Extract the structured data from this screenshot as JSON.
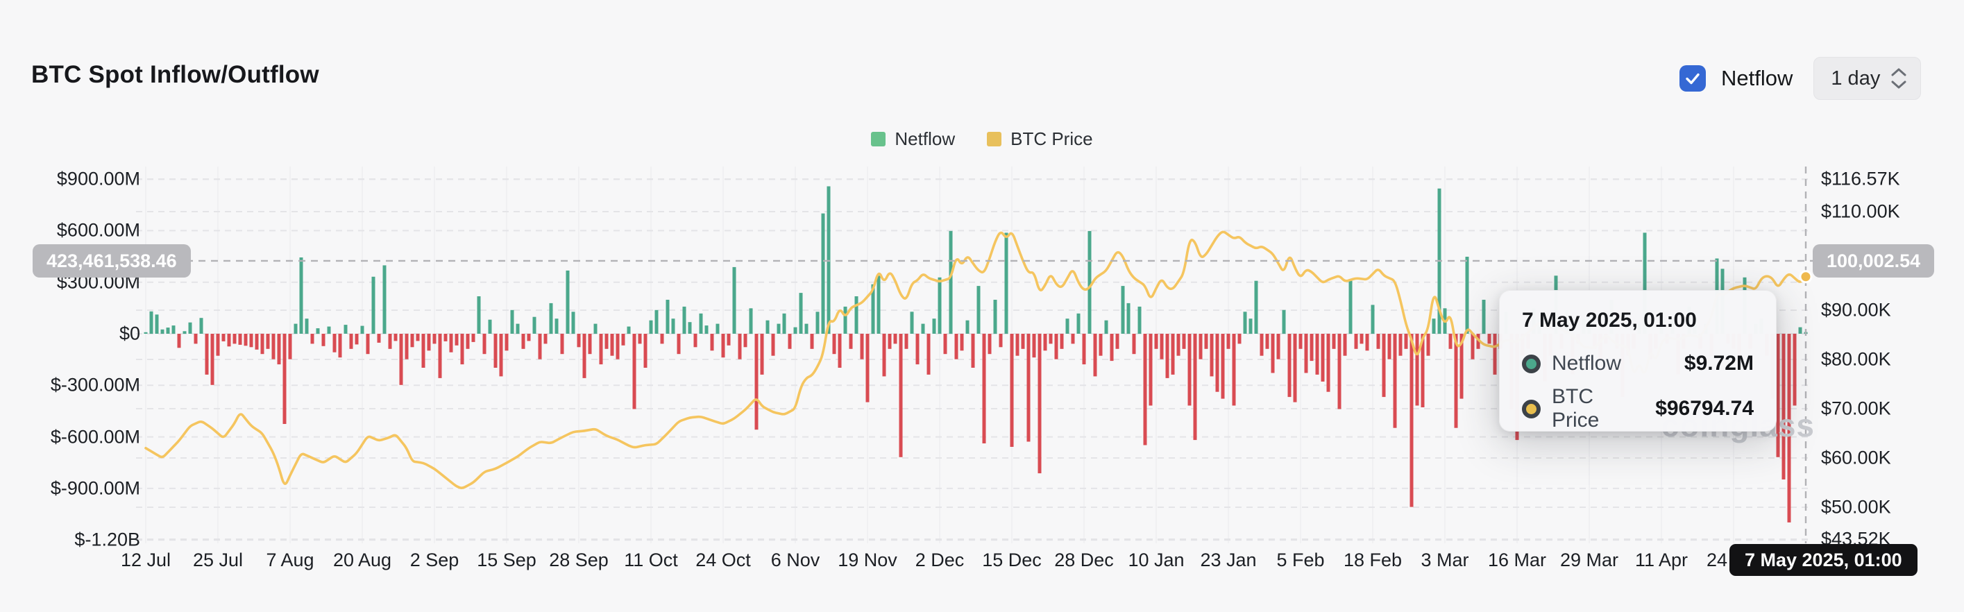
{
  "header": {
    "title": "BTC Spot Inflow/Outflow",
    "netflow_toggle_label": "Netflow",
    "netflow_toggle_checked": true,
    "interval_value": "1 day"
  },
  "legend": [
    {
      "label": "Netflow",
      "color": "#68c28c"
    },
    {
      "label": "BTC Price",
      "color": "#e8c05c"
    }
  ],
  "colors": {
    "bar_positive": "#4ba88c",
    "bar_negative": "#d94b52",
    "price_line": "#f5c55f",
    "checkbox_blue": "#3568d4",
    "grid": "#e4e4e7",
    "vgrid": "#ededf0",
    "crosshair": "#b2b2b6",
    "badge_gray": "#b9b9bd",
    "badge_black": "#121214"
  },
  "crosshair": {
    "left_badge_value": "423,461,538.46",
    "right_badge_value": "100,002.54",
    "date_badge": "7 May 2025, 01:00"
  },
  "tooltip": {
    "title": "7 May 2025, 01:00",
    "rows": [
      {
        "label": "Netflow",
        "value": "$9.72M",
        "color": "#4ba88c"
      },
      {
        "label": "BTC Price",
        "value": "$96794.74",
        "color": "#e9bf4e"
      }
    ]
  },
  "watermark": "coinglass",
  "chart_data": {
    "type": [
      "bar",
      "line"
    ],
    "title": "BTC Spot Inflow/Outflow",
    "x_range_days": 300,
    "x_axis": {
      "ticks": [
        {
          "label": "12 Jul",
          "day": 0
        },
        {
          "label": "25 Jul",
          "day": 13
        },
        {
          "label": "7 Aug",
          "day": 26
        },
        {
          "label": "20 Aug",
          "day": 39
        },
        {
          "label": "2 Sep",
          "day": 52
        },
        {
          "label": "15 Sep",
          "day": 65
        },
        {
          "label": "28 Sep",
          "day": 78
        },
        {
          "label": "11 Oct",
          "day": 91
        },
        {
          "label": "24 Oct",
          "day": 104
        },
        {
          "label": "6 Nov",
          "day": 117
        },
        {
          "label": "19 Nov",
          "day": 130
        },
        {
          "label": "2 Dec",
          "day": 143
        },
        {
          "label": "15 Dec",
          "day": 156
        },
        {
          "label": "28 Dec",
          "day": 169
        },
        {
          "label": "10 Jan",
          "day": 182
        },
        {
          "label": "23 Jan",
          "day": 195
        },
        {
          "label": "5 Feb",
          "day": 208
        },
        {
          "label": "18 Feb",
          "day": 221
        },
        {
          "label": "3 Mar",
          "day": 234
        },
        {
          "label": "16 Mar",
          "day": 247
        },
        {
          "label": "29 Mar",
          "day": 260
        },
        {
          "label": "11 Apr",
          "day": 273
        },
        {
          "label": "24 Apr",
          "day": 286
        }
      ],
      "hover_day": 299
    },
    "left_axis": {
      "name": "Netflow (USD)",
      "ticks": [
        {
          "label": "$900.00M",
          "value": 900
        },
        {
          "label": "$600.00M",
          "value": 600
        },
        {
          "label": "$300.00M",
          "value": 300
        },
        {
          "label": "$0",
          "value": 0
        },
        {
          "label": "$-300.00M",
          "value": -300
        },
        {
          "label": "$-600.00M",
          "value": -600
        },
        {
          "label": "$-900.00M",
          "value": -900
        },
        {
          "label": "$-1.20B",
          "value": -1200
        }
      ],
      "crosshair_value_musd": 423.46
    },
    "right_axis": {
      "name": "BTC Price (USD)",
      "ticks": [
        {
          "label": "$116.57K",
          "value": 116.57
        },
        {
          "label": "$110.00K",
          "value": 110
        },
        {
          "label": "$90.00K",
          "value": 90
        },
        {
          "label": "$80.00K",
          "value": 80
        },
        {
          "label": "$70.00K",
          "value": 70
        },
        {
          "label": "$60.00K",
          "value": 60
        },
        {
          "label": "$50.00K",
          "value": 50
        },
        {
          "label": "$43.52K",
          "value": 43.52
        }
      ],
      "crosshair_value_usd": 100002.54
    },
    "hover_point": {
      "netflow_musd": 9.72,
      "price_usd": 96794.74
    },
    "bar_series": {
      "name": "Netflow",
      "unit": "USD millions",
      "values": [
        8,
        130,
        112,
        25,
        36,
        48,
        -82,
        15,
        66,
        -58,
        92,
        -238,
        -298,
        -128,
        -44,
        -74,
        -58,
        -64,
        -70,
        -78,
        -92,
        -118,
        -88,
        -148,
        -178,
        -525,
        -148,
        58,
        444,
        88,
        -58,
        32,
        -72,
        42,
        -108,
        -138,
        52,
        -88,
        -62,
        46,
        -118,
        332,
        -52,
        398,
        -88,
        -42,
        -298,
        -148,
        -78,
        -42,
        -198,
        -98,
        -58,
        -258,
        -44,
        -108,
        -68,
        -178,
        -88,
        -48,
        218,
        -118,
        82,
        -198,
        -248,
        -98,
        138,
        58,
        -88,
        -42,
        98,
        -148,
        -58,
        178,
        88,
        -118,
        368,
        128,
        -78,
        -258,
        -118,
        58,
        -178,
        -88,
        -128,
        -148,
        -68,
        42,
        -438,
        -58,
        -198,
        78,
        138,
        -58,
        198,
        88,
        -118,
        158,
        68,
        -78,
        118,
        48,
        -98,
        58,
        -138,
        -68,
        388,
        -148,
        -78,
        148,
        -558,
        -238,
        78,
        -128,
        58,
        118,
        -88,
        38,
        238,
        58,
        -88,
        128,
        700,
        858,
        -118,
        -198,
        158,
        -88,
        218,
        -148,
        -398,
        288,
        338,
        -248,
        -88,
        -58,
        -718,
        -88,
        128,
        -178,
        58,
        -238,
        88,
        328,
        -118,
        598,
        -148,
        -98,
        78,
        -198,
        278,
        -638,
        -118,
        198,
        -78,
        588,
        -658,
        -128,
        -88,
        -628,
        -138,
        -812,
        -98,
        -58,
        -148,
        -88,
        88,
        -58,
        118,
        -178,
        598,
        -248,
        -128,
        78,
        -158,
        -88,
        278,
        178,
        -118,
        158,
        -648,
        -418,
        -88,
        -148,
        -258,
        -238,
        -128,
        -88,
        -418,
        -618,
        -148,
        -88,
        -248,
        -338,
        -378,
        -88,
        -418,
        -58,
        128,
        88,
        308,
        -128,
        -88,
        -228,
        -148,
        138,
        -368,
        -398,
        -88,
        -228,
        -158,
        -238,
        -278,
        -338,
        -88,
        -438,
        -128,
        308,
        -88,
        -58,
        -98,
        168,
        -88,
        -368,
        -148,
        -548,
        -128,
        -88,
        -1008,
        -418,
        -428,
        -128,
        88,
        845,
        148,
        -88,
        -548,
        -378,
        448,
        -148,
        -88,
        198,
        -58,
        -238,
        -88,
        128,
        -438,
        -618,
        -128,
        -88,
        148,
        88,
        -278,
        -128,
        338,
        -88,
        138,
        -238,
        -58,
        88,
        118,
        -88,
        -148,
        -58,
        198,
        -88,
        -368,
        -128,
        -88,
        58,
        588,
        -148,
        -88,
        128,
        -58,
        88,
        -238,
        -88,
        158,
        118,
        -88,
        58,
        -128,
        438,
        378,
        -58,
        -88,
        -148,
        328,
        -88,
        58,
        88,
        -128,
        -378,
        -718,
        -848,
        -1098,
        -418,
        38,
        9.72
      ]
    },
    "line_series": {
      "name": "BTC Price",
      "unit": "USD thousands",
      "keypoints": [
        [
          0,
          62
        ],
        [
          3,
          60
        ],
        [
          6,
          63.5
        ],
        [
          8,
          66.5
        ],
        [
          10,
          67.5
        ],
        [
          12,
          66
        ],
        [
          14,
          64
        ],
        [
          16,
          67
        ],
        [
          17,
          69.3
        ],
        [
          19,
          66.5
        ],
        [
          21,
          65
        ],
        [
          23,
          61
        ],
        [
          24,
          58
        ],
        [
          25,
          54
        ],
        [
          26,
          56.5
        ],
        [
          28,
          61
        ],
        [
          30,
          60
        ],
        [
          32,
          59
        ],
        [
          34,
          60.5
        ],
        [
          36,
          59
        ],
        [
          38,
          61
        ],
        [
          40,
          64.5
        ],
        [
          42,
          63.5
        ],
        [
          44,
          64.2
        ],
        [
          45,
          64.8
        ],
        [
          47,
          62
        ],
        [
          48,
          59.3
        ],
        [
          50,
          59
        ],
        [
          52,
          57.8
        ],
        [
          54,
          56
        ],
        [
          56,
          54.2
        ],
        [
          57,
          53.8
        ],
        [
          59,
          55
        ],
        [
          61,
          57.2
        ],
        [
          63,
          57.8
        ],
        [
          65,
          59
        ],
        [
          67,
          60.3
        ],
        [
          69,
          62
        ],
        [
          71,
          63.3
        ],
        [
          73,
          63
        ],
        [
          75,
          64.2
        ],
        [
          77,
          65.3
        ],
        [
          79,
          65.5
        ],
        [
          81,
          65.9
        ],
        [
          83,
          64.5
        ],
        [
          85,
          63.7
        ],
        [
          87,
          62.5
        ],
        [
          88,
          62.1
        ],
        [
          90,
          62.6
        ],
        [
          92,
          62.8
        ],
        [
          94,
          65
        ],
        [
          96,
          67.4
        ],
        [
          98,
          68.2
        ],
        [
          100,
          68.4
        ],
        [
          102,
          67.6
        ],
        [
          104,
          66.9
        ],
        [
          106,
          68
        ],
        [
          108,
          69.8
        ],
        [
          110,
          72.2
        ],
        [
          111,
          70.5
        ],
        [
          113,
          69.3
        ],
        [
          115,
          68.8
        ],
        [
          117,
          70
        ],
        [
          118,
          74.5
        ],
        [
          119,
          76.3
        ],
        [
          120,
          76.7
        ],
        [
          121,
          78.5
        ],
        [
          122,
          81
        ],
        [
          123,
          88
        ],
        [
          124,
          87.5
        ],
        [
          125,
          90.5
        ],
        [
          126,
          88.5
        ],
        [
          127,
          90.5
        ],
        [
          129,
          91.5
        ],
        [
          131,
          94
        ],
        [
          132,
          98.2
        ],
        [
          133,
          95.5
        ],
        [
          134,
          98
        ],
        [
          135,
          96
        ],
        [
          136,
          93
        ],
        [
          137,
          92
        ],
        [
          138,
          95.5
        ],
        [
          139,
          96
        ],
        [
          140,
          97.5
        ],
        [
          141,
          96.5
        ],
        [
          143,
          95.8
        ],
        [
          145,
          96.5
        ],
        [
          146,
          101
        ],
        [
          147,
          99
        ],
        [
          148,
          101.2
        ],
        [
          149,
          99.5
        ],
        [
          150,
          98
        ],
        [
          151,
          97.5
        ],
        [
          152,
          100.5
        ],
        [
          153,
          104
        ],
        [
          154,
          106.2
        ],
        [
          155,
          104.5
        ],
        [
          156,
          106.1
        ],
        [
          157,
          103
        ],
        [
          158,
          100
        ],
        [
          159,
          97.5
        ],
        [
          160,
          97.8
        ],
        [
          161,
          93.5
        ],
        [
          162,
          95
        ],
        [
          163,
          97.5
        ],
        [
          164,
          95.2
        ],
        [
          165,
          94.5
        ],
        [
          167,
          98.5
        ],
        [
          168,
          95.5
        ],
        [
          169,
          94
        ],
        [
          170,
          94.5
        ],
        [
          171,
          96.5
        ],
        [
          173,
          98
        ],
        [
          175,
          102.1
        ],
        [
          176,
          101
        ],
        [
          177,
          98
        ],
        [
          178,
          96.5
        ],
        [
          180,
          95
        ],
        [
          181,
          92
        ],
        [
          182,
          94.5
        ],
        [
          183,
          96.5
        ],
        [
          184,
          94.5
        ],
        [
          185,
          94.2
        ],
        [
          187,
          97.5
        ],
        [
          188,
          104.5
        ],
        [
          189,
          104
        ],
        [
          190,
          100.5
        ],
        [
          191,
          101.3
        ],
        [
          193,
          105
        ],
        [
          194,
          106.1
        ],
        [
          196,
          104.5
        ],
        [
          197,
          105
        ],
        [
          198,
          103.7
        ],
        [
          200,
          102.5
        ],
        [
          201,
          103
        ],
        [
          203,
          101.5
        ],
        [
          205,
          97.5
        ],
        [
          206,
          101.5
        ],
        [
          207,
          98.5
        ],
        [
          208,
          96.5
        ],
        [
          209,
          98.3
        ],
        [
          210,
          97.8
        ],
        [
          212,
          95.5
        ],
        [
          213,
          96.2
        ],
        [
          215,
          97
        ],
        [
          216,
          95.8
        ],
        [
          218,
          96.5
        ],
        [
          220,
          96.2
        ],
        [
          222,
          98.5
        ],
        [
          223,
          97
        ],
        [
          225,
          96
        ],
        [
          226,
          92
        ],
        [
          227,
          87
        ],
        [
          228,
          84
        ],
        [
          229,
          80
        ],
        [
          230,
          84.5
        ],
        [
          231,
          86
        ],
        [
          232,
          94
        ],
        [
          233,
          90
        ],
        [
          234,
          87
        ],
        [
          235,
          89.5
        ],
        [
          236,
          82.5
        ],
        [
          237,
          83
        ],
        [
          238,
          86.5
        ],
        [
          240,
          84
        ],
        [
          241,
          83
        ],
        [
          243,
          82.5
        ],
        [
          245,
          84
        ],
        [
          247,
          83.5
        ],
        [
          249,
          85.5
        ],
        [
          251,
          87.5
        ],
        [
          253,
          86.5
        ],
        [
          254,
          88
        ],
        [
          255,
          86
        ],
        [
          257,
          85
        ],
        [
          259,
          82.5
        ],
        [
          261,
          82.3
        ],
        [
          263,
          85
        ],
        [
          265,
          83
        ],
        [
          267,
          82.5
        ],
        [
          268,
          76.5
        ],
        [
          269,
          79.5
        ],
        [
          270,
          76.3
        ],
        [
          271,
          82
        ],
        [
          272,
          79.5
        ],
        [
          273,
          83.5
        ],
        [
          274,
          84.5
        ],
        [
          276,
          84
        ],
        [
          278,
          85
        ],
        [
          280,
          84.5
        ],
        [
          282,
          88.5
        ],
        [
          283,
          93.5
        ],
        [
          284,
          93
        ],
        [
          286,
          94.5
        ],
        [
          288,
          95
        ],
        [
          290,
          94.2
        ],
        [
          291,
          96.5
        ],
        [
          292,
          97
        ],
        [
          293,
          96.5
        ],
        [
          294,
          94.5
        ],
        [
          295,
          96.3
        ],
        [
          296,
          97.5
        ],
        [
          297,
          96.5
        ],
        [
          298,
          95.5
        ],
        [
          299,
          96.79
        ]
      ]
    }
  }
}
